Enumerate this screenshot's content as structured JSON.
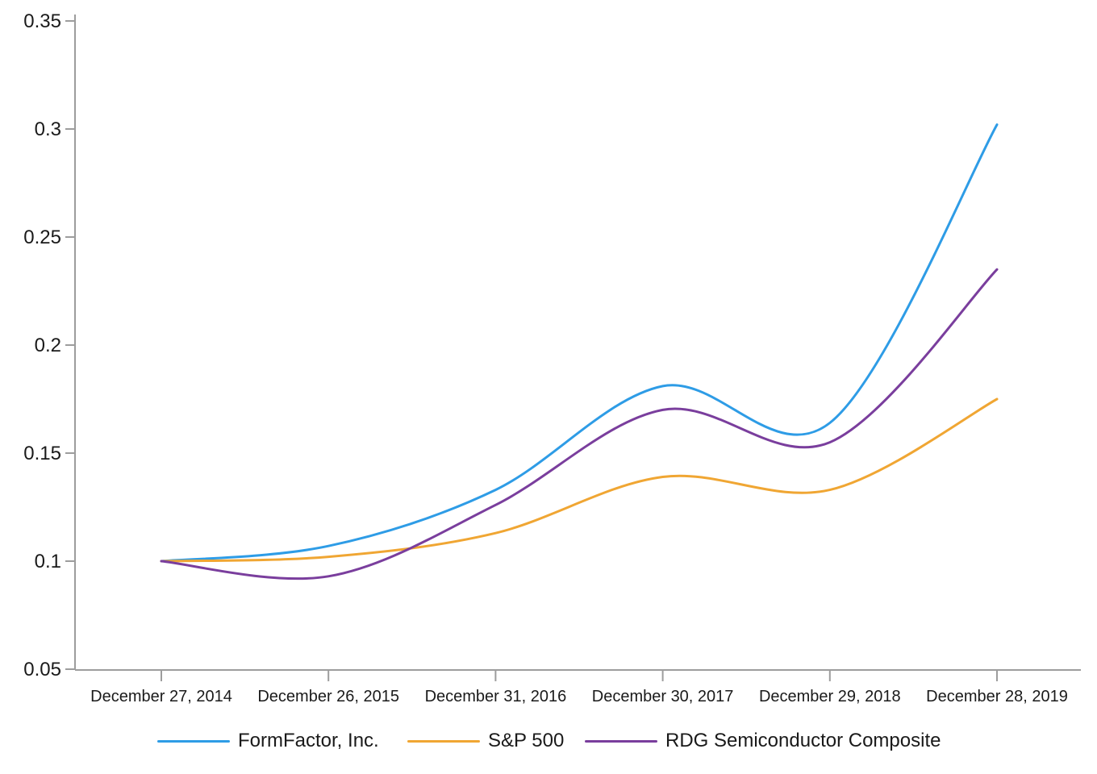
{
  "chart_data": {
    "type": "line",
    "title": "",
    "line_style": "smooth",
    "grid": false,
    "legend_position": "bottom",
    "x_categories": [
      "December 27, 2014",
      "December 26, 2015",
      "December 31, 2016",
      "December 30, 2017",
      "December 29, 2018",
      "December 28, 2019"
    ],
    "y_ticks": [
      0.05,
      0.1,
      0.15,
      0.2,
      0.25,
      0.3,
      0.35
    ],
    "ylim": [
      0.05,
      0.35
    ],
    "series": [
      {
        "name": "FormFactor, Inc.",
        "color": "#2E9CE6",
        "values": [
          0.1,
          0.107,
          0.133,
          0.181,
          0.164,
          0.302
        ]
      },
      {
        "name": "S&P 500",
        "color": "#F0A633",
        "values": [
          0.1,
          0.102,
          0.113,
          0.139,
          0.133,
          0.175
        ]
      },
      {
        "name": "RDG Semiconductor Composite",
        "color": "#7A3E9D",
        "values": [
          0.1,
          0.093,
          0.126,
          0.17,
          0.155,
          0.235
        ]
      }
    ],
    "axis_color": "#9d9d9d",
    "text_color": "#1a1a1a"
  }
}
